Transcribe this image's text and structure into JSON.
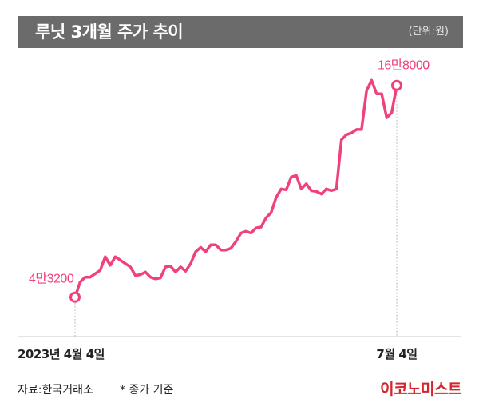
{
  "header": {
    "title": "루닛 3개월 주가 추이",
    "unit": "(단위:원)"
  },
  "footer": {
    "source": "자료:한국거래소",
    "note": "* 종가 기준",
    "logo": "이코노미스트"
  },
  "colors": {
    "line": "#f0427a",
    "title_bg": "#6b6b6b",
    "logo": "#d4252c"
  },
  "chart_data": {
    "type": "line",
    "x_start_label": "2023년 4월 4일",
    "x_end_label": "7월 4일",
    "start_label": "4만3200",
    "end_label": "16만8000",
    "values": [
      43200,
      52000,
      55000,
      55000,
      57000,
      59000,
      67000,
      62000,
      67000,
      65000,
      63000,
      61000,
      56000,
      56500,
      58000,
      55000,
      54000,
      54500,
      61000,
      61500,
      58000,
      61000,
      58500,
      63000,
      70000,
      72500,
      70000,
      74000,
      74000,
      71000,
      71000,
      72000,
      76000,
      81000,
      82000,
      81000,
      84000,
      84500,
      90000,
      93000,
      102000,
      107000,
      106500,
      114000,
      115000,
      107000,
      110000,
      106000,
      105500,
      104000,
      107000,
      106000,
      107000,
      136000,
      139000,
      140000,
      142000,
      142000,
      165000,
      171000,
      163000,
      163000,
      149000,
      152000,
      168000
    ],
    "ylim": [
      20000,
      190000
    ],
    "grid": false,
    "legend": "none"
  }
}
